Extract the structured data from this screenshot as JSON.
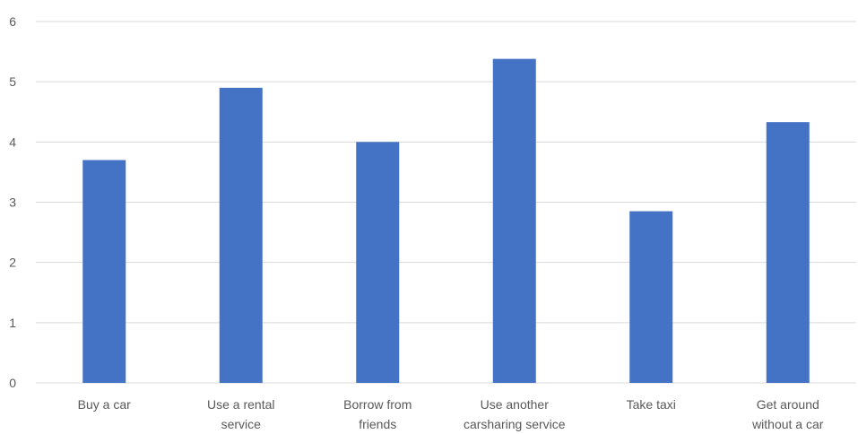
{
  "chart_data": {
    "type": "bar",
    "title": "",
    "xlabel": "",
    "ylabel": "",
    "categories": [
      [
        "Buy a car"
      ],
      [
        "Use a rental",
        "service"
      ],
      [
        "Borrow from",
        "friends"
      ],
      [
        "Use another",
        "carsharing service"
      ],
      [
        "Take taxi"
      ],
      [
        "Get around",
        "without a car"
      ]
    ],
    "values": [
      3.7,
      4.9,
      4.0,
      5.38,
      2.85,
      4.33
    ],
    "ylim": [
      0,
      6
    ],
    "yticks": [
      "0",
      "1",
      "2",
      "3",
      "4",
      "5",
      "6"
    ],
    "grid": true,
    "legend": "none",
    "colors": {
      "bar": "#4472c4",
      "grid": "#d9d9d9",
      "text": "#595959"
    }
  }
}
